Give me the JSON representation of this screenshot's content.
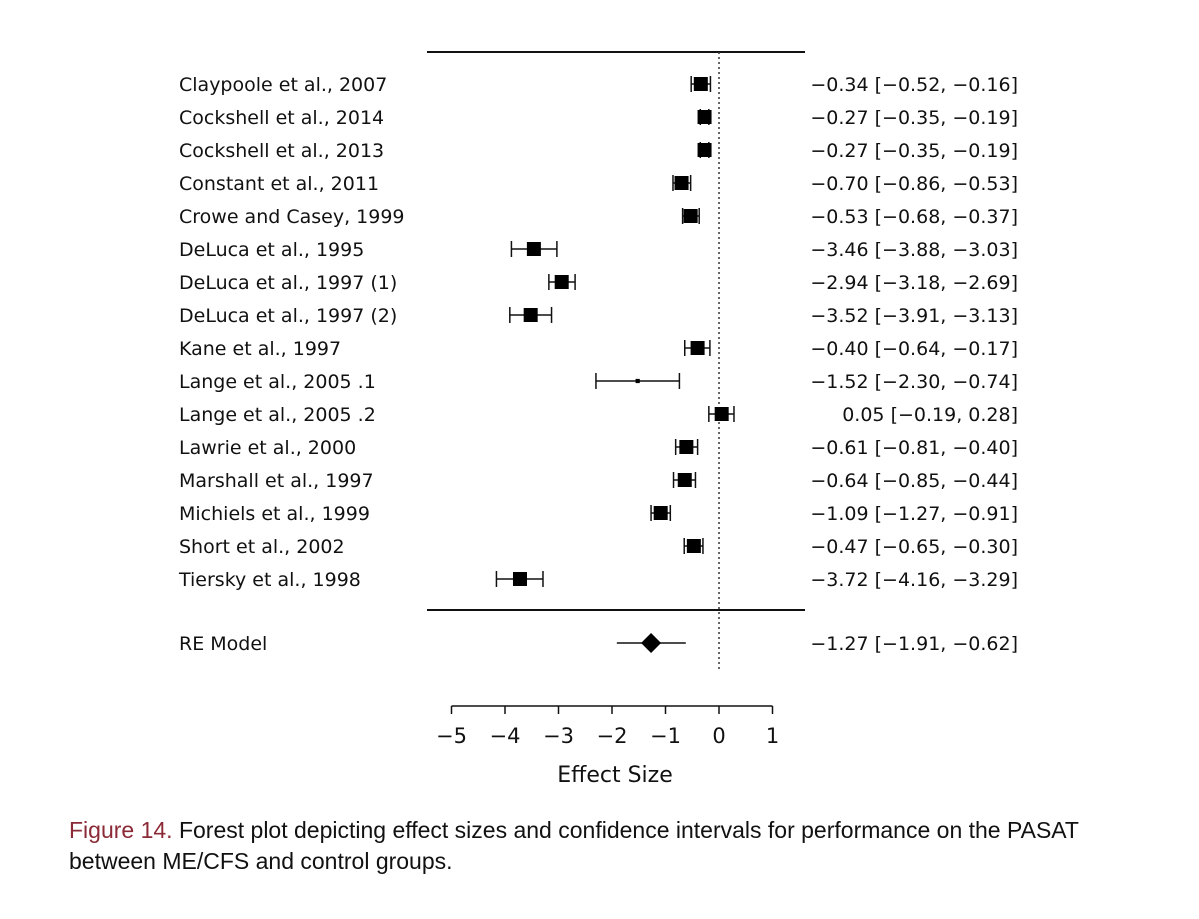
{
  "chart_data": {
    "type": "forest",
    "xlabel": "Effect Size",
    "xlim": [
      -5,
      1
    ],
    "xticks": [
      -5,
      -4,
      -3,
      -2,
      -1,
      0,
      1
    ],
    "xtick_labels": [
      "−5",
      "−4",
      "−3",
      "−2",
      "−1",
      "0",
      "1"
    ],
    "reference_line": 0,
    "studies": [
      {
        "label": "Claypoole et al., 2007",
        "estimate": -0.34,
        "lower": -0.52,
        "upper": -0.16,
        "ci_text": "−0.34 [−0.52, −0.16]",
        "marker_size": 1.0
      },
      {
        "label": "Cockshell et al., 2014",
        "estimate": -0.27,
        "lower": -0.35,
        "upper": -0.19,
        "ci_text": "−0.27 [−0.35, −0.19]",
        "marker_size": 1.0
      },
      {
        "label": "Cockshell et al., 2013",
        "estimate": -0.27,
        "lower": -0.35,
        "upper": -0.19,
        "ci_text": "−0.27 [−0.35, −0.19]",
        "marker_size": 1.0
      },
      {
        "label": "Constant et al., 2011",
        "estimate": -0.7,
        "lower": -0.86,
        "upper": -0.53,
        "ci_text": "−0.70 [−0.86, −0.53]",
        "marker_size": 1.0
      },
      {
        "label": "Crowe and Casey, 1999",
        "estimate": -0.53,
        "lower": -0.68,
        "upper": -0.37,
        "ci_text": "−0.53 [−0.68, −0.37]",
        "marker_size": 1.0
      },
      {
        "label": "DeLuca et al., 1995",
        "estimate": -3.46,
        "lower": -3.88,
        "upper": -3.03,
        "ci_text": "−3.46 [−3.88, −3.03]",
        "marker_size": 1.0
      },
      {
        "label": "DeLuca et al., 1997 (1)",
        "estimate": -2.94,
        "lower": -3.18,
        "upper": -2.69,
        "ci_text": "−2.94 [−3.18, −2.69]",
        "marker_size": 1.0
      },
      {
        "label": "DeLuca et al., 1997 (2)",
        "estimate": -3.52,
        "lower": -3.91,
        "upper": -3.13,
        "ci_text": "−3.52 [−3.91, −3.13]",
        "marker_size": 1.0
      },
      {
        "label": "Kane et al., 1997",
        "estimate": -0.4,
        "lower": -0.64,
        "upper": -0.17,
        "ci_text": "−0.40 [−0.64, −0.17]",
        "marker_size": 1.0
      },
      {
        "label": "Lange et al., 2005 .1",
        "estimate": -1.52,
        "lower": -2.3,
        "upper": -0.74,
        "ci_text": "−1.52 [−2.30, −0.74]",
        "marker_size": 0.3
      },
      {
        "label": "Lange et al., 2005 .2",
        "estimate": 0.05,
        "lower": -0.19,
        "upper": 0.28,
        "ci_text": "0.05 [−0.19, 0.28]",
        "marker_size": 1.0
      },
      {
        "label": "Lawrie et al., 2000",
        "estimate": -0.61,
        "lower": -0.81,
        "upper": -0.4,
        "ci_text": "−0.61 [−0.81, −0.40]",
        "marker_size": 1.0
      },
      {
        "label": "Marshall et al., 1997",
        "estimate": -0.64,
        "lower": -0.85,
        "upper": -0.44,
        "ci_text": "−0.64 [−0.85, −0.44]",
        "marker_size": 1.0
      },
      {
        "label": "Michiels et al., 1999",
        "estimate": -1.09,
        "lower": -1.27,
        "upper": -0.91,
        "ci_text": "−1.09 [−1.27, −0.91]",
        "marker_size": 1.0
      },
      {
        "label": "Short et al., 2002",
        "estimate": -0.47,
        "lower": -0.65,
        "upper": -0.3,
        "ci_text": "−0.47 [−0.65, −0.30]",
        "marker_size": 1.0
      },
      {
        "label": "Tiersky et al., 1998",
        "estimate": -3.72,
        "lower": -4.16,
        "upper": -3.29,
        "ci_text": "−3.72 [−4.16, −3.29]",
        "marker_size": 1.0
      }
    ],
    "summary": {
      "label": "RE Model",
      "estimate": -1.27,
      "lower": -1.91,
      "upper": -0.62,
      "ci_text": "−1.27 [−1.91, −0.62]"
    }
  },
  "caption": {
    "figure_label": "Figure 14.",
    "text": "Forest plot depicting effect sizes and confidence intervals for performance on the PASAT between ME/CFS and control groups."
  }
}
